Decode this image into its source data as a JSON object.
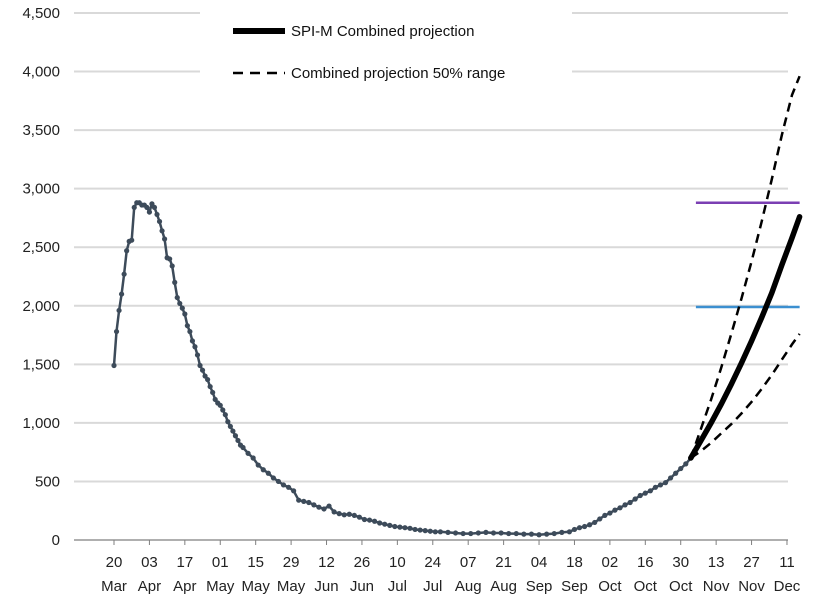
{
  "chart_data": {
    "type": "line",
    "title": "",
    "xlabel": "",
    "ylabel": "",
    "ylim": [
      0,
      4500
    ],
    "y_ticks": [
      0,
      500,
      1000,
      1500,
      2000,
      2500,
      3000,
      3500,
      4000,
      4500
    ],
    "y_tick_labels": [
      "0",
      "500",
      "1,000",
      "1,500",
      "2,000",
      "2,500",
      "3,000",
      "3,500",
      "4,000",
      "4,500"
    ],
    "x_start": "2020-03-20",
    "x_end": "2020-12-18",
    "x_tick_dates": [
      "2020-03-20",
      "2020-04-03",
      "2020-04-17",
      "2020-05-01",
      "2020-05-15",
      "2020-05-29",
      "2020-06-12",
      "2020-06-26",
      "2020-07-10",
      "2020-07-24",
      "2020-08-07",
      "2020-08-21",
      "2020-09-04",
      "2020-09-18",
      "2020-10-02",
      "2020-10-16",
      "2020-10-30",
      "2020-11-13",
      "2020-11-27",
      "2020-12-11"
    ],
    "x_tick_labels": [
      {
        "day": "20",
        "month": "Mar"
      },
      {
        "day": "03",
        "month": "Apr"
      },
      {
        "day": "17",
        "month": "Apr"
      },
      {
        "day": "01",
        "month": "May"
      },
      {
        "day": "15",
        "month": "May"
      },
      {
        "day": "29",
        "month": "May"
      },
      {
        "day": "12",
        "month": "Jun"
      },
      {
        "day": "26",
        "month": "Jun"
      },
      {
        "day": "10",
        "month": "Jul"
      },
      {
        "day": "24",
        "month": "Jul"
      },
      {
        "day": "07",
        "month": "Aug"
      },
      {
        "day": "21",
        "month": "Aug"
      },
      {
        "day": "04",
        "month": "Sep"
      },
      {
        "day": "18",
        "month": "Sep"
      },
      {
        "day": "02",
        "month": "Oct"
      },
      {
        "day": "16",
        "month": "Oct"
      },
      {
        "day": "30",
        "month": "Oct"
      },
      {
        "day": "13",
        "month": "Nov"
      },
      {
        "day": "27",
        "month": "Nov"
      },
      {
        "day": "11",
        "month": "Dec"
      }
    ],
    "grid": true,
    "legend_position": "top-center",
    "legend": [
      {
        "label": "SPI-M Combined projection",
        "style": "solid-thick"
      },
      {
        "label": "Combined projection 50% range",
        "style": "dashed"
      }
    ],
    "series": [
      {
        "style": "observed",
        "color": "#3d4b5a",
        "points": [
          [
            "2020-03-20",
            1490
          ],
          [
            "2020-03-21",
            1780
          ],
          [
            "2020-03-22",
            1960
          ],
          [
            "2020-03-23",
            2100
          ],
          [
            "2020-03-24",
            2270
          ],
          [
            "2020-03-25",
            2470
          ],
          [
            "2020-03-26",
            2550
          ],
          [
            "2020-03-27",
            2560
          ],
          [
            "2020-03-28",
            2840
          ],
          [
            "2020-03-29",
            2880
          ],
          [
            "2020-03-30",
            2880
          ],
          [
            "2020-03-31",
            2860
          ],
          [
            "2020-04-01",
            2860
          ],
          [
            "2020-04-02",
            2840
          ],
          [
            "2020-04-03",
            2800
          ],
          [
            "2020-04-04",
            2870
          ],
          [
            "2020-04-05",
            2840
          ],
          [
            "2020-04-06",
            2780
          ],
          [
            "2020-04-07",
            2720
          ],
          [
            "2020-04-08",
            2640
          ],
          [
            "2020-04-09",
            2570
          ],
          [
            "2020-04-10",
            2410
          ],
          [
            "2020-04-11",
            2400
          ],
          [
            "2020-04-12",
            2340
          ],
          [
            "2020-04-13",
            2200
          ],
          [
            "2020-04-14",
            2070
          ],
          [
            "2020-04-15",
            2020
          ],
          [
            "2020-04-16",
            1980
          ],
          [
            "2020-04-17",
            1930
          ],
          [
            "2020-04-18",
            1830
          ],
          [
            "2020-04-19",
            1780
          ],
          [
            "2020-04-20",
            1700
          ],
          [
            "2020-04-21",
            1650
          ],
          [
            "2020-04-22",
            1580
          ],
          [
            "2020-04-23",
            1490
          ],
          [
            "2020-04-24",
            1450
          ],
          [
            "2020-04-25",
            1400
          ],
          [
            "2020-04-26",
            1370
          ],
          [
            "2020-04-27",
            1310
          ],
          [
            "2020-04-28",
            1260
          ],
          [
            "2020-04-29",
            1200
          ],
          [
            "2020-04-30",
            1170
          ],
          [
            "2020-05-01",
            1150
          ],
          [
            "2020-05-02",
            1110
          ],
          [
            "2020-05-03",
            1070
          ],
          [
            "2020-05-04",
            1010
          ],
          [
            "2020-05-05",
            970
          ],
          [
            "2020-05-06",
            930
          ],
          [
            "2020-05-07",
            890
          ],
          [
            "2020-05-08",
            850
          ],
          [
            "2020-05-09",
            810
          ],
          [
            "2020-05-10",
            790
          ],
          [
            "2020-05-12",
            740
          ],
          [
            "2020-05-14",
            700
          ],
          [
            "2020-05-16",
            640
          ],
          [
            "2020-05-18",
            600
          ],
          [
            "2020-05-20",
            570
          ],
          [
            "2020-05-22",
            530
          ],
          [
            "2020-05-24",
            500
          ],
          [
            "2020-05-26",
            470
          ],
          [
            "2020-05-28",
            450
          ],
          [
            "2020-05-30",
            420
          ],
          [
            "2020-06-01",
            340
          ],
          [
            "2020-06-03",
            330
          ],
          [
            "2020-06-05",
            320
          ],
          [
            "2020-06-07",
            300
          ],
          [
            "2020-06-09",
            280
          ],
          [
            "2020-06-11",
            265
          ],
          [
            "2020-06-13",
            290
          ],
          [
            "2020-06-15",
            240
          ],
          [
            "2020-06-17",
            225
          ],
          [
            "2020-06-19",
            215
          ],
          [
            "2020-06-21",
            220
          ],
          [
            "2020-06-23",
            210
          ],
          [
            "2020-06-25",
            195
          ],
          [
            "2020-06-27",
            175
          ],
          [
            "2020-06-29",
            170
          ],
          [
            "2020-07-01",
            160
          ],
          [
            "2020-07-03",
            145
          ],
          [
            "2020-07-05",
            135
          ],
          [
            "2020-07-07",
            125
          ],
          [
            "2020-07-09",
            115
          ],
          [
            "2020-07-11",
            110
          ],
          [
            "2020-07-13",
            105
          ],
          [
            "2020-07-15",
            100
          ],
          [
            "2020-07-17",
            90
          ],
          [
            "2020-07-19",
            85
          ],
          [
            "2020-07-21",
            80
          ],
          [
            "2020-07-23",
            75
          ],
          [
            "2020-07-25",
            70
          ],
          [
            "2020-07-27",
            70
          ],
          [
            "2020-07-30",
            65
          ],
          [
            "2020-08-02",
            60
          ],
          [
            "2020-08-05",
            55
          ],
          [
            "2020-08-08",
            55
          ],
          [
            "2020-08-11",
            60
          ],
          [
            "2020-08-14",
            65
          ],
          [
            "2020-08-17",
            60
          ],
          [
            "2020-08-20",
            60
          ],
          [
            "2020-08-23",
            55
          ],
          [
            "2020-08-26",
            55
          ],
          [
            "2020-08-29",
            50
          ],
          [
            "2020-09-01",
            50
          ],
          [
            "2020-09-04",
            45
          ],
          [
            "2020-09-07",
            50
          ],
          [
            "2020-09-10",
            55
          ],
          [
            "2020-09-13",
            65
          ],
          [
            "2020-09-16",
            70
          ],
          [
            "2020-09-18",
            90
          ],
          [
            "2020-09-20",
            105
          ],
          [
            "2020-09-22",
            115
          ],
          [
            "2020-09-24",
            130
          ],
          [
            "2020-09-26",
            150
          ],
          [
            "2020-09-28",
            180
          ],
          [
            "2020-09-30",
            210
          ],
          [
            "2020-10-02",
            230
          ],
          [
            "2020-10-04",
            255
          ],
          [
            "2020-10-06",
            275
          ],
          [
            "2020-10-08",
            300
          ],
          [
            "2020-10-10",
            320
          ],
          [
            "2020-10-12",
            350
          ],
          [
            "2020-10-14",
            380
          ],
          [
            "2020-10-16",
            400
          ],
          [
            "2020-10-18",
            420
          ],
          [
            "2020-10-20",
            450
          ],
          [
            "2020-10-22",
            470
          ],
          [
            "2020-10-24",
            490
          ],
          [
            "2020-10-26",
            530
          ],
          [
            "2020-10-28",
            570
          ],
          [
            "2020-10-30",
            610
          ],
          [
            "2020-11-01",
            650
          ],
          [
            "2020-11-03",
            700
          ]
        ]
      },
      {
        "name": "SPI-M Combined projection",
        "style": "projection",
        "color": "#000000",
        "points": [
          [
            "2020-11-03",
            700
          ],
          [
            "2020-11-07",
            850
          ],
          [
            "2020-11-11",
            1000
          ],
          [
            "2020-11-15",
            1160
          ],
          [
            "2020-11-19",
            1330
          ],
          [
            "2020-11-23",
            1510
          ],
          [
            "2020-11-27",
            1700
          ],
          [
            "2020-12-01",
            1900
          ],
          [
            "2020-12-05",
            2110
          ],
          [
            "2020-12-09",
            2350
          ],
          [
            "2020-12-13",
            2580
          ],
          [
            "2020-12-16",
            2760
          ]
        ]
      },
      {
        "name": "Combined projection 50% range",
        "style": "range-upper",
        "color": "#000000",
        "points": [
          [
            "2020-11-03",
            700
          ],
          [
            "2020-11-07",
            950
          ],
          [
            "2020-11-11",
            1200
          ],
          [
            "2020-11-15",
            1470
          ],
          [
            "2020-11-19",
            1760
          ],
          [
            "2020-11-23",
            2060
          ],
          [
            "2020-11-27",
            2380
          ],
          [
            "2020-12-01",
            2720
          ],
          [
            "2020-12-05",
            3080
          ],
          [
            "2020-12-09",
            3460
          ],
          [
            "2020-12-13",
            3800
          ],
          [
            "2020-12-16",
            3960
          ]
        ]
      },
      {
        "name": "Combined projection 50% range",
        "style": "range-lower",
        "color": "#000000",
        "points": [
          [
            "2020-11-03",
            700
          ],
          [
            "2020-11-07",
            760
          ],
          [
            "2020-11-11",
            830
          ],
          [
            "2020-11-15",
            910
          ],
          [
            "2020-11-19",
            990
          ],
          [
            "2020-11-23",
            1080
          ],
          [
            "2020-11-27",
            1180
          ],
          [
            "2020-12-01",
            1290
          ],
          [
            "2020-12-05",
            1410
          ],
          [
            "2020-12-09",
            1540
          ],
          [
            "2020-12-13",
            1670
          ],
          [
            "2020-12-16",
            1760
          ]
        ]
      }
    ],
    "reference_lines": [
      {
        "value": 2880,
        "color": "#7b3fb3",
        "x_from": "2020-11-05",
        "x_to": "2020-12-16"
      },
      {
        "value": 1990,
        "color": "#3b8fd0",
        "x_from": "2020-11-05",
        "x_to": "2020-12-16"
      }
    ],
    "colors": {
      "observed": "#3d4b5a",
      "projection": "#000000",
      "grid": "#d9d9d9",
      "reference_purple": "#7b3fb3",
      "reference_blue": "#3b8fd0"
    }
  }
}
